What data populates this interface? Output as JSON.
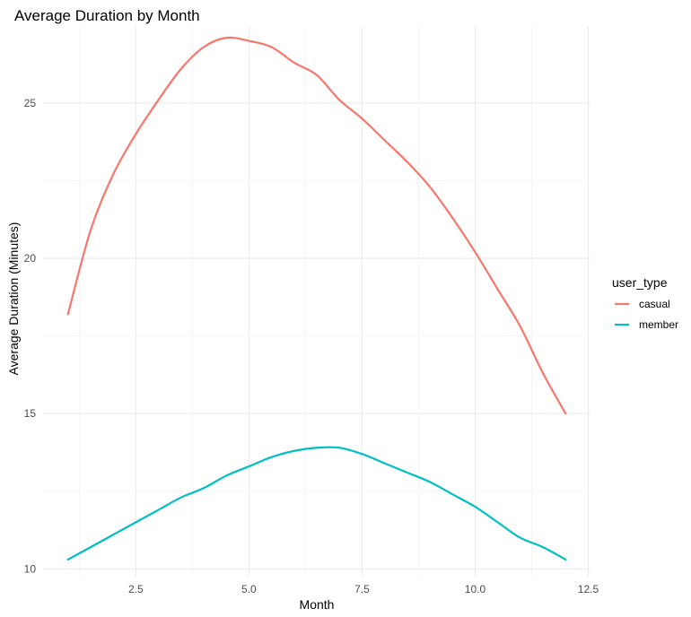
{
  "chart_data": {
    "type": "line",
    "title": "Average Duration by Month",
    "xlabel": "Month",
    "ylabel": "Average Duration (Minutes)",
    "xlim": [
      0.45,
      12.55
    ],
    "ylim": [
      9.75,
      27.45
    ],
    "x_ticks": [
      2.5,
      5.0,
      7.5,
      10.0,
      12.5
    ],
    "x_tick_labels": [
      "2.5",
      "5.0",
      "7.5",
      "10.0",
      "12.5"
    ],
    "y_ticks": [
      10,
      15,
      20,
      25
    ],
    "y_tick_labels": [
      "10",
      "15",
      "20",
      "25"
    ],
    "grid": true,
    "legend": {
      "title": "user_type",
      "position": "right"
    },
    "series": [
      {
        "name": "casual",
        "color": "#F8766D",
        "x": [
          1.0,
          1.5,
          2.0,
          2.5,
          3.0,
          3.5,
          4.0,
          4.5,
          5.0,
          5.5,
          6.0,
          6.5,
          7.0,
          7.5,
          8.0,
          8.5,
          9.0,
          9.5,
          10.0,
          10.5,
          11.0,
          11.5,
          12.0
        ],
        "y": [
          18.2,
          20.9,
          22.7,
          24.0,
          25.1,
          26.1,
          26.8,
          27.1,
          27.0,
          26.8,
          26.3,
          25.9,
          25.1,
          24.5,
          23.8,
          23.1,
          22.3,
          21.3,
          20.2,
          19.0,
          17.8,
          16.3,
          15.0
        ]
      },
      {
        "name": "member",
        "color": "#00BFC4",
        "x": [
          1.0,
          1.5,
          2.0,
          2.5,
          3.0,
          3.5,
          4.0,
          4.5,
          5.0,
          5.5,
          6.0,
          6.5,
          7.0,
          7.5,
          8.0,
          8.5,
          9.0,
          9.5,
          10.0,
          10.5,
          11.0,
          11.5,
          12.0
        ],
        "y": [
          10.3,
          10.7,
          11.1,
          11.5,
          11.9,
          12.3,
          12.6,
          13.0,
          13.3,
          13.6,
          13.8,
          13.9,
          13.9,
          13.7,
          13.4,
          13.1,
          12.8,
          12.4,
          12.0,
          11.5,
          11.0,
          10.7,
          10.3
        ]
      }
    ]
  }
}
